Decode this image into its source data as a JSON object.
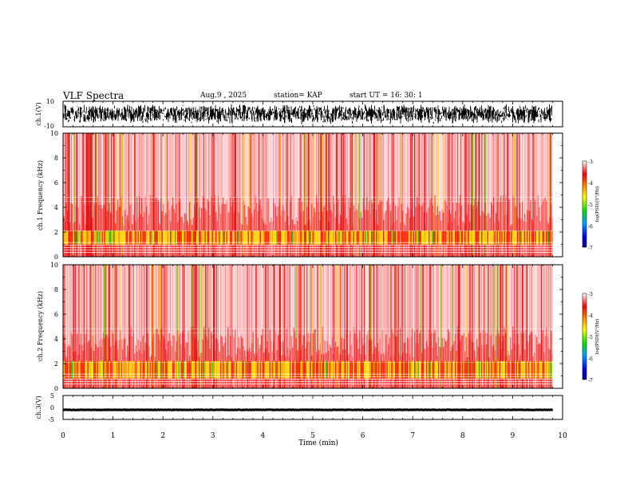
{
  "header": {
    "title": "VLF Spectra",
    "date": "Aug.9  , 2025",
    "station": "station= KAP",
    "start": "start  UT  =   16: 30: 1"
  },
  "chart_data": [
    {
      "type": "line",
      "name": "ch1-waveform",
      "ylabel": "ch.1(V)",
      "ylim": [
        -10,
        10
      ],
      "yticks": [
        "10",
        "-10"
      ],
      "x_range_min": [
        0,
        9.8
      ],
      "description_values": "dense noise waveform filling roughly -8 to 8 V"
    },
    {
      "type": "heatmap",
      "name": "ch1-spectrogram",
      "ylabel": "ch.1 Frequency  (kHz)",
      "ylim": [
        0,
        10
      ],
      "yticks": [
        "0",
        "2",
        "4",
        "6",
        "8",
        "10"
      ],
      "x_range_min": [
        0,
        9.8
      ],
      "colorbar": {
        "label": "log(PSD)(V²/Hz)",
        "ticks": [
          "-3",
          "-4",
          "-5",
          "-6",
          "-7"
        ],
        "range": [
          -7,
          -3
        ]
      },
      "band_khz": [
        1.0,
        2.1
      ]
    },
    {
      "type": "heatmap",
      "name": "ch2-spectrogram",
      "ylabel": "ch.2 Frequency  (kHz)",
      "ylim": [
        0,
        10
      ],
      "yticks": [
        "0",
        "2",
        "4",
        "6",
        "8",
        "10"
      ],
      "x_range_min": [
        0,
        9.8
      ],
      "colorbar": {
        "label": "log(PSD)(V²/Hz)",
        "ticks": [
          "-3",
          "-4",
          "-5",
          "-6",
          "-7"
        ],
        "range": [
          -7,
          -3
        ]
      },
      "band_khz": [
        0.8,
        2.2
      ]
    },
    {
      "type": "line",
      "name": "ch3-waveform",
      "ylabel": "ch.3(V)",
      "ylim": [
        -5,
        5
      ],
      "yticks": [
        "5",
        "0",
        "-5"
      ],
      "x_range_min": [
        0,
        9.8
      ],
      "description_values": "flat band around -1 V"
    }
  ],
  "xaxis": {
    "label": "Time  (min)",
    "ticks": [
      "0",
      "1",
      "2",
      "3",
      "4",
      "5",
      "6",
      "7",
      "8",
      "9",
      "10"
    ],
    "range": [
      0,
      10
    ]
  },
  "colors": {
    "ink": "#000000",
    "spec_red": "#e8000a",
    "band_yellow": "#ffee00",
    "band_green": "#22cc00",
    "spec_blue": "#0044ff"
  }
}
